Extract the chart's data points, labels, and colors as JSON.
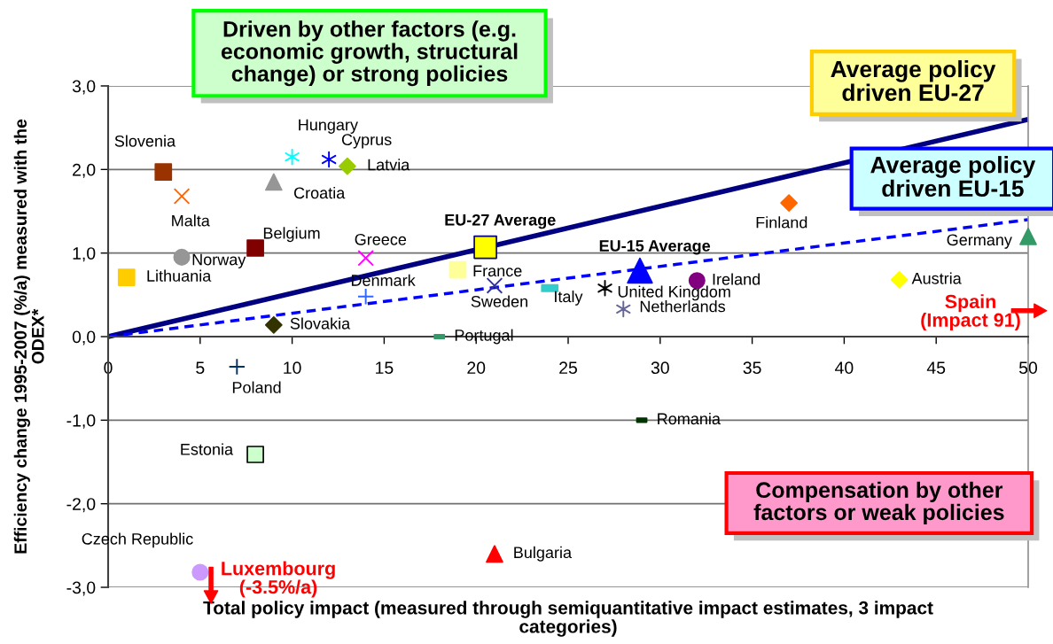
{
  "chart_data": {
    "type": "scatter",
    "xlabel": "Total policy impact (measured through semiquantitative impact estimates, 3 impact\ncategories)",
    "ylabel": "Efficiency change 1995-2007 (%/a) measured with the\nODEX*",
    "xlim": [
      0,
      50
    ],
    "ylim": [
      -3,
      3
    ],
    "xticks": [
      0,
      5,
      10,
      15,
      20,
      25,
      30,
      35,
      40,
      45,
      50
    ],
    "yticks": [
      {
        "value": -3,
        "label": "-3,0"
      },
      {
        "value": -2,
        "label": "-2,0"
      },
      {
        "value": -1,
        "label": "-1,0"
      },
      {
        "value": 0,
        "label": "0,0"
      },
      {
        "value": 1,
        "label": "1,0"
      },
      {
        "value": 2,
        "label": "2,0"
      },
      {
        "value": 3,
        "label": "3,0"
      }
    ],
    "grid": "y",
    "annotations": [
      "Driven by other factors (e.g.\neconomic growth, structural\nchange) or strong policies",
      "Compensation by other\nfactors or weak policies",
      "Spain\n(Impact 91)",
      "Luxembourg\n(-3.5%/a)"
    ],
    "series": [
      {
        "name": "Average policy\ndriven EU-27",
        "type": "line",
        "color": "#000080",
        "x": [
          0,
          50
        ],
        "values": [
          0,
          2.6
        ],
        "line_style": "solid",
        "marker": "none"
      },
      {
        "name": "Average policy\ndriven EU-15",
        "type": "line",
        "color": "#0000ff",
        "x": [
          0,
          50
        ],
        "values": [
          0,
          1.4
        ],
        "line_style": "dashed",
        "marker": "none"
      },
      {
        "name": "Slovenia",
        "color": "#993300",
        "marker": "square",
        "x": [
          3
        ],
        "values": [
          1.97
        ]
      },
      {
        "name": "Malta",
        "color": "#ff6600",
        "marker": "cross",
        "x": [
          4
        ],
        "values": [
          1.68
        ]
      },
      {
        "name": "Croatia",
        "color": "#969696",
        "marker": "triangle",
        "x": [
          9
        ],
        "values": [
          1.85
        ]
      },
      {
        "name": "Hungary",
        "color": "#00ffff",
        "marker": "cross",
        "x": [
          10
        ],
        "values": [
          2.15
        ]
      },
      {
        "name": "Cyprus",
        "color": "#0000ff",
        "marker": "cross",
        "x": [
          12
        ],
        "values": [
          2.12
        ]
      },
      {
        "name": "Latvia",
        "color": "#99cc00",
        "marker": "diamond",
        "x": [
          13
        ],
        "values": [
          2.04
        ]
      },
      {
        "name": "Norway",
        "color": "#969696",
        "marker": "circle",
        "x": [
          4
        ],
        "values": [
          0.95
        ]
      },
      {
        "name": "Belgium",
        "color": "#800000",
        "marker": "square",
        "x": [
          8
        ],
        "values": [
          1.06
        ]
      },
      {
        "name": "Lithuania",
        "color": "#ffcc00",
        "marker": "square",
        "x": [
          1
        ],
        "values": [
          0.71
        ]
      },
      {
        "name": "Greece",
        "color": "#ff00ff",
        "marker": "cross",
        "x": [
          14
        ],
        "values": [
          0.94
        ]
      },
      {
        "name": "Denmark",
        "color": "#3366ff",
        "marker": "plus",
        "x": [
          14
        ],
        "values": [
          0.48
        ]
      },
      {
        "name": "Slovakia",
        "color": "#333300",
        "marker": "diamond",
        "x": [
          9
        ],
        "values": [
          0.14
        ]
      },
      {
        "name": "Portugal",
        "color": "#339966",
        "x": [
          18
        ],
        "values": [
          0.0
        ]
      },
      {
        "name": "EU-27 Average",
        "color": "#ffff00",
        "marker": "square",
        "x": [
          20.5
        ],
        "values": [
          1.07
        ]
      },
      {
        "name": "France",
        "color": "#ffff99",
        "marker": "square",
        "x": [
          19
        ],
        "values": [
          0.8
        ]
      },
      {
        "name": "Sweden",
        "color": "#333399",
        "marker": "cross",
        "x": [
          21
        ],
        "values": [
          0.61
        ]
      },
      {
        "name": "Italy",
        "color": "#33cccc",
        "x": [
          24
        ],
        "values": [
          0.58
        ]
      },
      {
        "name": "United Kingdom",
        "color": "#000000",
        "marker": "cross",
        "x": [
          27
        ],
        "values": [
          0.58
        ]
      },
      {
        "name": "EU-15 Average",
        "color": "#0000ff",
        "marker": "triangle",
        "x": [
          28.9
        ],
        "values": [
          0.79
        ]
      },
      {
        "name": "Netherlands",
        "color": "#666699",
        "marker": "cross",
        "x": [
          28
        ],
        "values": [
          0.33
        ]
      },
      {
        "name": "Ireland",
        "color": "#800080",
        "marker": "circle",
        "x": [
          32
        ],
        "values": [
          0.67
        ]
      },
      {
        "name": "Finland",
        "color": "#ff6600",
        "marker": "diamond",
        "x": [
          37
        ],
        "values": [
          1.6
        ]
      },
      {
        "name": "Germany",
        "color": "#339966",
        "marker": "triangle",
        "x": [
          50
        ],
        "values": [
          1.2
        ]
      },
      {
        "name": "Austria",
        "color": "#ffff00",
        "marker": "diamond",
        "x": [
          43
        ],
        "values": [
          0.68
        ]
      },
      {
        "name": "Poland",
        "color": "#003366",
        "marker": "plus",
        "x": [
          7
        ],
        "values": [
          -0.36
        ]
      },
      {
        "name": "Estonia",
        "color": "#ccffcc",
        "marker": "square",
        "x": [
          8
        ],
        "values": [
          -1.41
        ]
      },
      {
        "name": "Czech Republic",
        "color": "#cc99ff",
        "marker": "circle",
        "x": [
          5
        ],
        "values": [
          -2.82
        ]
      },
      {
        "name": "Bulgaria",
        "color": "#ff0000",
        "marker": "triangle",
        "x": [
          21
        ],
        "values": [
          -2.6
        ]
      },
      {
        "name": "Romania",
        "color": "#003300",
        "x": [
          29
        ],
        "values": [
          -1.0
        ]
      }
    ]
  }
}
